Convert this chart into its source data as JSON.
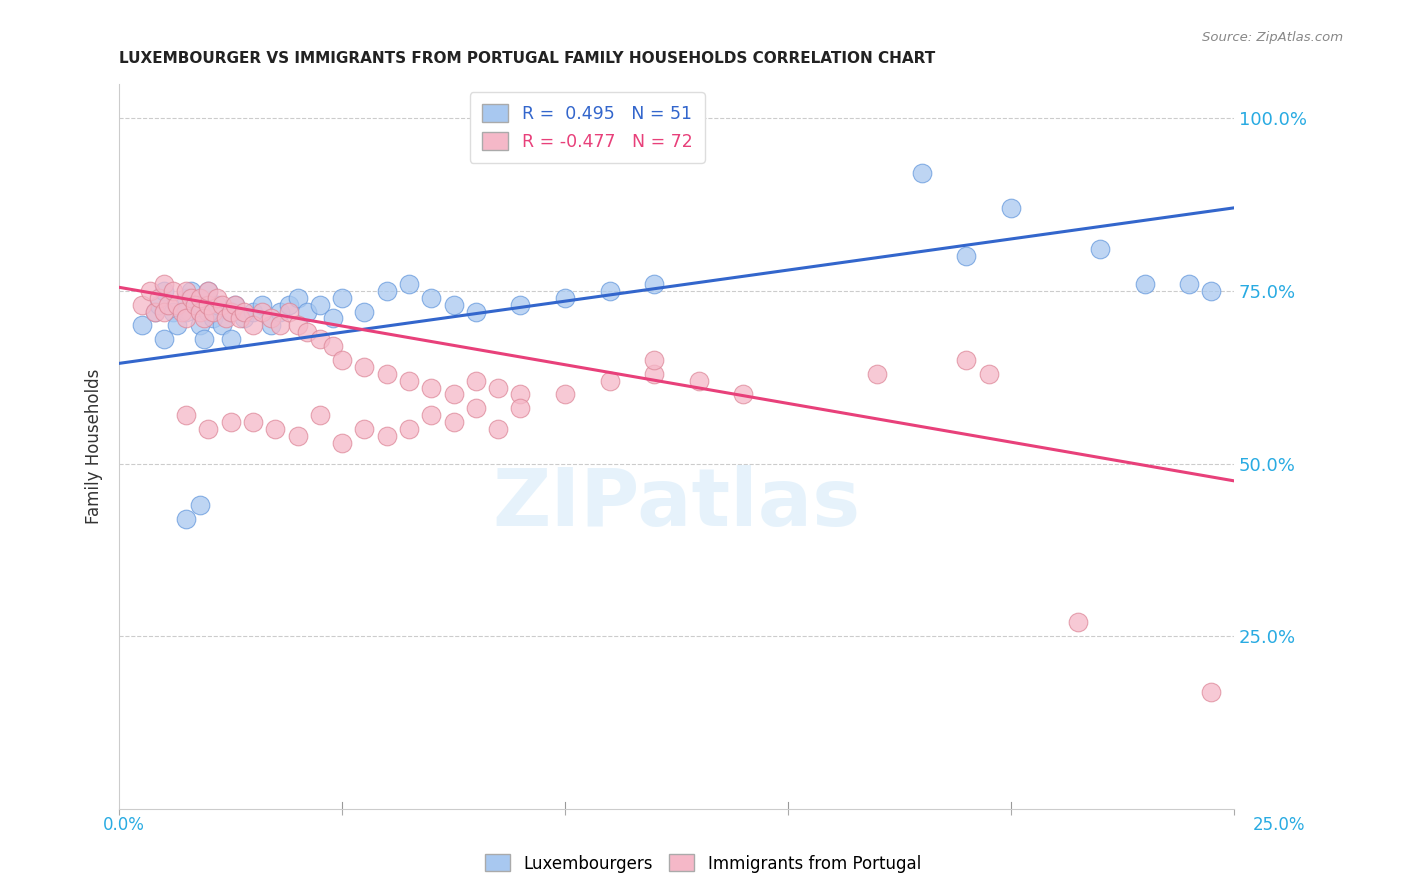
{
  "title": "LUXEMBOURGER VS IMMIGRANTS FROM PORTUGAL FAMILY HOUSEHOLDS CORRELATION CHART",
  "source": "Source: ZipAtlas.com",
  "ylabel": "Family Households",
  "ytick_labels": [
    "100.0%",
    "75.0%",
    "50.0%",
    "25.0%"
  ],
  "ytick_values": [
    1.0,
    0.75,
    0.5,
    0.25
  ],
  "xlim": [
    0.0,
    0.25
  ],
  "ylim": [
    0.0,
    1.05
  ],
  "legend_r_blue": "R =  0.495   N = 51",
  "legend_r_pink": "R = -0.477   N = 72",
  "blue_color": "#A8C8F0",
  "pink_color": "#F5B8C8",
  "line_blue_color": "#3366CC",
  "line_pink_color": "#E8407A",
  "watermark": "ZIPatlas",
  "blue_line_x0": 0.0,
  "blue_line_y0": 0.645,
  "blue_line_x1": 0.25,
  "blue_line_y1": 0.87,
  "pink_line_x0": 0.0,
  "pink_line_y0": 0.755,
  "pink_line_x1": 0.25,
  "pink_line_y1": 0.475,
  "blue_scatter_x": [
    0.005,
    0.008,
    0.009,
    0.01,
    0.01,
    0.012,
    0.013,
    0.015,
    0.015,
    0.016,
    0.018,
    0.018,
    0.019,
    0.02,
    0.02,
    0.021,
    0.022,
    0.023,
    0.025,
    0.025,
    0.026,
    0.028,
    0.03,
    0.032,
    0.034,
    0.036,
    0.038,
    0.04,
    0.042,
    0.045,
    0.048,
    0.05,
    0.055,
    0.06,
    0.065,
    0.07,
    0.075,
    0.08,
    0.09,
    0.1,
    0.11,
    0.12,
    0.015,
    0.018,
    0.18,
    0.19,
    0.2,
    0.22,
    0.23,
    0.24,
    0.245
  ],
  "blue_scatter_y": [
    0.7,
    0.72,
    0.73,
    0.68,
    0.75,
    0.72,
    0.7,
    0.74,
    0.72,
    0.75,
    0.7,
    0.73,
    0.68,
    0.72,
    0.75,
    0.71,
    0.73,
    0.7,
    0.72,
    0.68,
    0.73,
    0.71,
    0.72,
    0.73,
    0.7,
    0.72,
    0.73,
    0.74,
    0.72,
    0.73,
    0.71,
    0.74,
    0.72,
    0.75,
    0.76,
    0.74,
    0.73,
    0.72,
    0.73,
    0.74,
    0.75,
    0.76,
    0.42,
    0.44,
    0.92,
    0.8,
    0.87,
    0.81,
    0.76,
    0.76,
    0.75
  ],
  "pink_scatter_x": [
    0.005,
    0.007,
    0.008,
    0.009,
    0.01,
    0.01,
    0.011,
    0.012,
    0.013,
    0.014,
    0.015,
    0.015,
    0.016,
    0.017,
    0.018,
    0.018,
    0.019,
    0.02,
    0.02,
    0.021,
    0.022,
    0.023,
    0.024,
    0.025,
    0.026,
    0.027,
    0.028,
    0.03,
    0.032,
    0.034,
    0.036,
    0.038,
    0.04,
    0.042,
    0.045,
    0.048,
    0.05,
    0.055,
    0.06,
    0.065,
    0.07,
    0.075,
    0.08,
    0.085,
    0.09,
    0.1,
    0.11,
    0.12,
    0.13,
    0.14,
    0.015,
    0.02,
    0.025,
    0.03,
    0.035,
    0.04,
    0.045,
    0.05,
    0.055,
    0.06,
    0.065,
    0.07,
    0.075,
    0.08,
    0.085,
    0.09,
    0.12,
    0.17,
    0.19,
    0.195,
    0.215,
    0.245
  ],
  "pink_scatter_y": [
    0.73,
    0.75,
    0.72,
    0.74,
    0.76,
    0.72,
    0.73,
    0.75,
    0.73,
    0.72,
    0.75,
    0.71,
    0.74,
    0.73,
    0.72,
    0.74,
    0.71,
    0.73,
    0.75,
    0.72,
    0.74,
    0.73,
    0.71,
    0.72,
    0.73,
    0.71,
    0.72,
    0.7,
    0.72,
    0.71,
    0.7,
    0.72,
    0.7,
    0.69,
    0.68,
    0.67,
    0.65,
    0.64,
    0.63,
    0.62,
    0.61,
    0.6,
    0.62,
    0.61,
    0.6,
    0.6,
    0.62,
    0.63,
    0.62,
    0.6,
    0.57,
    0.55,
    0.56,
    0.56,
    0.55,
    0.54,
    0.57,
    0.53,
    0.55,
    0.54,
    0.55,
    0.57,
    0.56,
    0.58,
    0.55,
    0.58,
    0.65,
    0.63,
    0.65,
    0.63,
    0.27,
    0.17
  ]
}
